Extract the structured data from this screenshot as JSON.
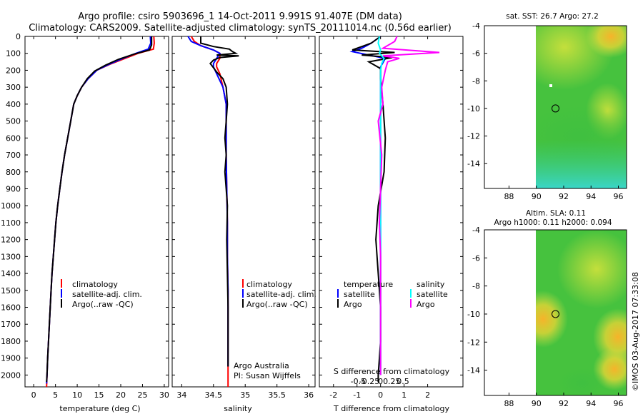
{
  "header": {
    "line1": "Argo profile: csiro 5903696_1 14-Oct-2011 9.991S 91.407E (DM data)",
    "line2": "Climatology: CARS2009. Satellite-adjusted climatology: synTS_20111014.nc (0.56d earlier)"
  },
  "colors": {
    "climatology": "#ff0000",
    "satellite": "#0000ff",
    "argo": "#000000",
    "sal_sat": "#00ffff",
    "sal_argo": "#ff00ff"
  },
  "side_text": "©IMOS 03-Aug-2017 07:33:08",
  "chart_data": [
    {
      "id": "temperature",
      "type": "line",
      "xlabel": "temperature (deg C)",
      "xlim": [
        -2,
        31
      ],
      "xticks": [
        0,
        5,
        10,
        15,
        20,
        25,
        30
      ],
      "ylim": [
        2070,
        0
      ],
      "yticks": [
        0,
        100,
        200,
        300,
        400,
        500,
        600,
        700,
        800,
        900,
        1000,
        1100,
        1200,
        1300,
        1400,
        1500,
        1600,
        1700,
        1800,
        1900,
        2000
      ],
      "legend": [
        "climatology",
        "satellite-adj. clim.",
        "Argo(..raw -QC)"
      ],
      "series": [
        {
          "name": "climatology",
          "color": "#ff0000",
          "points": [
            [
              27.6,
              0
            ],
            [
              27.7,
              40
            ],
            [
              27.5,
              75
            ],
            [
              24,
              100
            ],
            [
              21,
              130
            ],
            [
              17.5,
              165
            ],
            [
              14.5,
              200
            ],
            [
              12.5,
              250
            ],
            [
              11,
              300
            ],
            [
              10,
              350
            ],
            [
              9.2,
              400
            ],
            [
              8.5,
              500
            ],
            [
              7.8,
              600
            ],
            [
              7.1,
              700
            ],
            [
              6.5,
              800
            ],
            [
              6,
              900
            ],
            [
              5.5,
              1000
            ],
            [
              5.1,
              1100
            ],
            [
              4.8,
              1200
            ],
            [
              4.5,
              1300
            ],
            [
              4.2,
              1400
            ],
            [
              4,
              1500
            ],
            [
              3.8,
              1600
            ],
            [
              3.6,
              1700
            ],
            [
              3.4,
              1800
            ],
            [
              3.2,
              1900
            ],
            [
              3.05,
              2000
            ],
            [
              2.95,
              2070
            ]
          ]
        },
        {
          "name": "satellite-adj. clim.",
          "color": "#0000ff",
          "points": [
            [
              26.8,
              0
            ],
            [
              26.9,
              40
            ],
            [
              26.3,
              75
            ],
            [
              23.5,
              100
            ],
            [
              20.5,
              130
            ],
            [
              17.3,
              165
            ],
            [
              14.5,
              200
            ],
            [
              12.5,
              250
            ],
            [
              11,
              300
            ],
            [
              10,
              350
            ],
            [
              9.2,
              400
            ],
            [
              8.5,
              500
            ],
            [
              7.8,
              600
            ],
            [
              7.1,
              700
            ],
            [
              6.5,
              800
            ],
            [
              6,
              900
            ],
            [
              5.5,
              1000
            ],
            [
              5.1,
              1100
            ],
            [
              4.8,
              1200
            ],
            [
              4.5,
              1300
            ],
            [
              4.2,
              1400
            ],
            [
              4,
              1500
            ],
            [
              3.8,
              1600
            ],
            [
              3.6,
              1700
            ],
            [
              3.4,
              1800
            ],
            [
              3.2,
              1900
            ],
            [
              3.05,
              2000
            ],
            [
              2.95,
              2050
            ]
          ]
        },
        {
          "name": "Argo(..raw -QC)",
          "color": "#000000",
          "points": [
            [
              27.1,
              0
            ],
            [
              27.1,
              50
            ],
            [
              26.6,
              80
            ],
            [
              23,
              105
            ],
            [
              19.5,
              135
            ],
            [
              16.5,
              170
            ],
            [
              14,
              205
            ],
            [
              12.3,
              250
            ],
            [
              11,
              300
            ],
            [
              10,
              350
            ],
            [
              9.2,
              400
            ],
            [
              8.5,
              500
            ],
            [
              7.8,
              600
            ],
            [
              7.1,
              700
            ],
            [
              6.5,
              800
            ],
            [
              6,
              900
            ],
            [
              5.5,
              1000
            ],
            [
              5.1,
              1100
            ],
            [
              4.8,
              1200
            ],
            [
              4.5,
              1300
            ],
            [
              4.2,
              1400
            ],
            [
              4,
              1500
            ],
            [
              3.8,
              1600
            ],
            [
              3.6,
              1700
            ],
            [
              3.4,
              1800
            ],
            [
              3.2,
              1900
            ],
            [
              3.05,
              2000
            ],
            [
              2.95,
              2040
            ]
          ]
        }
      ]
    },
    {
      "id": "salinity",
      "type": "line",
      "xlabel": "salinity",
      "xlim": [
        33.85,
        36.1
      ],
      "xticks": [
        34,
        34.5,
        35,
        35.5,
        36
      ],
      "ylim": [
        2070,
        0
      ],
      "legend": [
        "climatology",
        "satellite-adj. clim.",
        "Argo(..raw -QC)"
      ],
      "annotation": [
        "Argo Australia",
        "PI: Susan Wijffels"
      ],
      "series": [
        {
          "name": "climatology",
          "color": "#ff0000",
          "points": [
            [
              34.15,
              0
            ],
            [
              34.2,
              30
            ],
            [
              34.3,
              55
            ],
            [
              34.5,
              80
            ],
            [
              34.6,
              100
            ],
            [
              34.6,
              130
            ],
            [
              34.55,
              160
            ],
            [
              34.55,
              180
            ],
            [
              34.6,
              220
            ],
            [
              34.65,
              300
            ],
            [
              34.7,
              400
            ],
            [
              34.7,
              500
            ],
            [
              34.7,
              700
            ],
            [
              34.71,
              900
            ],
            [
              34.72,
              1100
            ],
            [
              34.72,
              1300
            ],
            [
              34.73,
              1500
            ],
            [
              34.73,
              1700
            ],
            [
              34.73,
              1900
            ],
            [
              34.73,
              2000
            ],
            [
              34.73,
              2070
            ]
          ]
        },
        {
          "name": "satellite-adj. clim.",
          "color": "#0000ff",
          "points": [
            [
              34.1,
              0
            ],
            [
              34.15,
              30
            ],
            [
              34.3,
              55
            ],
            [
              34.5,
              80
            ],
            [
              34.6,
              100
            ],
            [
              34.55,
              130
            ],
            [
              34.5,
              160
            ],
            [
              34.5,
              180
            ],
            [
              34.55,
              220
            ],
            [
              34.65,
              300
            ],
            [
              34.7,
              400
            ],
            [
              34.7,
              500
            ],
            [
              34.7,
              700
            ],
            [
              34.71,
              900
            ],
            [
              34.72,
              1100
            ],
            [
              34.72,
              1300
            ],
            [
              34.73,
              1500
            ],
            [
              34.73,
              1700
            ],
            [
              34.73,
              1900
            ],
            [
              34.73,
              1950
            ]
          ]
        },
        {
          "name": "Argo(..raw -QC)",
          "color": "#000000",
          "points": [
            [
              34.3,
              0
            ],
            [
              34.3,
              40
            ],
            [
              34.5,
              60
            ],
            [
              34.75,
              75
            ],
            [
              34.8,
              90
            ],
            [
              34.85,
              100
            ],
            [
              34.55,
              110
            ],
            [
              34.9,
              115
            ],
            [
              34.6,
              125
            ],
            [
              34.5,
              140
            ],
            [
              34.45,
              160
            ],
            [
              34.5,
              185
            ],
            [
              34.55,
              210
            ],
            [
              34.65,
              250
            ],
            [
              34.7,
              300
            ],
            [
              34.72,
              400
            ],
            [
              34.7,
              500
            ],
            [
              34.68,
              600
            ],
            [
              34.7,
              700
            ],
            [
              34.68,
              800
            ],
            [
              34.7,
              900
            ],
            [
              34.72,
              1000
            ],
            [
              34.71,
              1200
            ],
            [
              34.72,
              1400
            ],
            [
              34.73,
              1600
            ],
            [
              34.73,
              1800
            ],
            [
              34.73,
              1950
            ]
          ]
        }
      ]
    },
    {
      "id": "difference",
      "type": "line",
      "xlabel": "T difference from climatology",
      "xlabel2": "S difference from climatology",
      "xlim": [
        -2.6,
        3.5
      ],
      "xticks": [
        -2,
        -1,
        0,
        1,
        2
      ],
      "xticks2": [
        -0.5,
        -0.25,
        0,
        0.25,
        0.5
      ],
      "xticks2_labels": [
        "-0.5",
        "-0.25",
        "0",
        "0.25",
        "0.5"
      ],
      "ylim": [
        2070,
        0
      ],
      "legend_headers": [
        "temperature",
        "salinity"
      ],
      "legend_left": [
        "satellite",
        "Argo"
      ],
      "legend_right": [
        "satellite",
        "Argo"
      ],
      "series": [
        {
          "name": "temperature satellite",
          "color": "#0000ff",
          "points": [
            [
              0,
              0
            ],
            [
              -0.4,
              40
            ],
            [
              -0.8,
              70
            ],
            [
              -1.2,
              90
            ],
            [
              -0.5,
              110
            ],
            [
              0.2,
              130
            ],
            [
              0,
              180
            ],
            [
              0,
              2000
            ]
          ]
        },
        {
          "name": "temperature Argo",
          "color": "#000000",
          "points": [
            [
              0,
              0
            ],
            [
              -0.4,
              40
            ],
            [
              -1.2,
              80
            ],
            [
              0.6,
              95
            ],
            [
              -0.8,
              110
            ],
            [
              0.5,
              125
            ],
            [
              -0.5,
              150
            ],
            [
              0,
              190
            ],
            [
              0,
              250
            ],
            [
              0.1,
              400
            ],
            [
              0.2,
              600
            ],
            [
              0.15,
              800
            ],
            [
              -0.1,
              1000
            ],
            [
              -0.2,
              1200
            ],
            [
              -0.1,
              1400
            ],
            [
              0,
              1600
            ],
            [
              0,
              1800
            ],
            [
              -0.1,
              2000
            ],
            [
              -0.1,
              2040
            ]
          ]
        },
        {
          "name": "salinity satellite",
          "color": "#00ffff",
          "points": [
            [
              -0.05,
              0
            ],
            [
              -0.1,
              40
            ],
            [
              0,
              80
            ],
            [
              -0.05,
              100
            ],
            [
              0.15,
              130
            ],
            [
              0.05,
              160
            ],
            [
              0,
              200
            ],
            [
              0,
              2000
            ]
          ]
        },
        {
          "name": "salinity Argo",
          "color": "#ff00ff",
          "points": [
            [
              0.7,
              0
            ],
            [
              0.6,
              30
            ],
            [
              0.1,
              70
            ],
            [
              2.5,
              95
            ],
            [
              0.1,
              115
            ],
            [
              0.8,
              130
            ],
            [
              0.3,
              150
            ],
            [
              0.2,
              200
            ],
            [
              0.05,
              300
            ],
            [
              0.1,
              400
            ],
            [
              -0.1,
              500
            ],
            [
              0.05,
              700
            ],
            [
              0,
              900
            ],
            [
              -0.05,
              1100
            ],
            [
              0,
              1300
            ],
            [
              0,
              1600
            ],
            [
              0,
              1900
            ],
            [
              0,
              2000
            ]
          ]
        }
      ]
    },
    {
      "id": "sst_map",
      "type": "heatmap",
      "title": "sat. SST: 26.7  Argo: 27.2",
      "xlim": [
        86.2,
        96.6
      ],
      "ylim": [
        -15.8,
        -4
      ],
      "data_xlim": [
        90,
        96.4
      ],
      "xticks": [
        88,
        90,
        92,
        94,
        96
      ],
      "yticks": [
        -4,
        -6,
        -8,
        -10,
        -12,
        -14
      ],
      "marker": {
        "lon": 91.4,
        "lat": -10
      }
    },
    {
      "id": "sla_map",
      "type": "heatmap",
      "title": "Altim. SLA: 0.11",
      "subtitle": "Argo h1000: 0.11 h2000: 0.094",
      "xlim": [
        86.2,
        96.6
      ],
      "ylim": [
        -15.8,
        -4
      ],
      "data_xlim": [
        90,
        96.4
      ],
      "xticks": [
        88,
        90,
        92,
        94,
        96
      ],
      "yticks": [
        -4,
        -6,
        -8,
        -10,
        -12,
        -14
      ],
      "marker": {
        "lon": 91.4,
        "lat": -10
      }
    }
  ]
}
